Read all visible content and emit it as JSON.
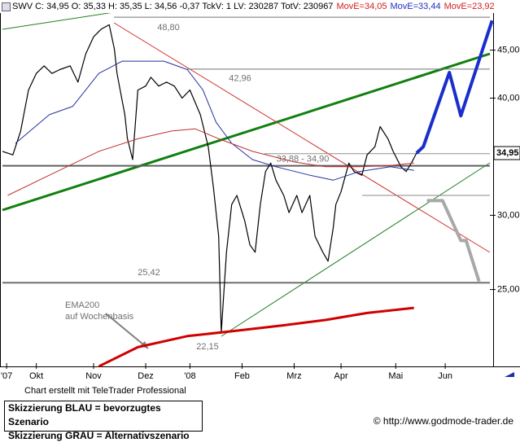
{
  "header": {
    "quote": "SWV C: 34,95 O: 35,33 H: 35,35 L: 34,56 -0,37 TckV: 1 LV: 230287 TotV: 230967",
    "ema_labels": [
      {
        "text": "MovE=34,05",
        "color": "#d02020"
      },
      {
        "text": "MovE=33,44",
        "color": "#2030c0"
      },
      {
        "text": "MovE=23,92",
        "color": "#d02020"
      }
    ]
  },
  "chart_data": {
    "type": "line",
    "log_scale": true,
    "grid": false,
    "xlim": [
      0,
      188.4
    ],
    "ylim": [
      20.7,
      49.1
    ],
    "xticks": [
      {
        "value": 1.6,
        "label": "'07"
      },
      {
        "value": 13,
        "label": "Okt"
      },
      {
        "value": 35,
        "label": "Nov"
      },
      {
        "value": 55,
        "label": "Dez"
      },
      {
        "value": 72,
        "label": "'08"
      },
      {
        "value": 92,
        "label": "Feb"
      },
      {
        "value": 112,
        "label": "Mrz"
      },
      {
        "value": 130,
        "label": "Apr"
      },
      {
        "value": 151,
        "label": "Mai"
      },
      {
        "value": 170,
        "label": "Jun"
      }
    ],
    "yticks": [
      {
        "value": 25,
        "label": "25,00"
      },
      {
        "value": 30,
        "label": "30,00"
      },
      {
        "value": 40,
        "label": "40,00"
      },
      {
        "value": 45,
        "label": "45,00"
      }
    ],
    "series": [
      {
        "color": "#000000",
        "width": 1.2,
        "x": [
          0,
          4,
          7,
          10,
          13,
          16,
          19,
          22,
          26,
          29,
          32,
          35,
          38,
          41,
          43,
          44,
          47,
          48,
          50,
          52,
          55,
          57,
          60,
          63,
          66,
          69,
          72,
          76,
          79,
          81,
          83,
          84,
          86,
          88,
          90,
          93,
          95,
          97,
          99,
          101,
          103,
          105,
          108,
          110,
          113,
          115,
          118,
          120,
          123,
          125,
          127,
          128,
          130,
          133,
          135,
          138,
          140,
          143,
          145,
          148,
          150,
          153,
          155,
          157,
          159
        ],
        "values": [
          35.1,
          34.8,
          36.9,
          40.8,
          42.5,
          43.3,
          42.5,
          42.9,
          43.3,
          41.6,
          44.6,
          46.5,
          47.4,
          47.9,
          45.1,
          42.5,
          38.4,
          36.2,
          34.4,
          40.8,
          41.2,
          42.1,
          41.2,
          41.6,
          41.2,
          40.0,
          40.8,
          38.4,
          35.5,
          32.1,
          28.5,
          22.5,
          27.4,
          30.8,
          31.5,
          29.6,
          27.9,
          27.4,
          30.8,
          33.4,
          34.1,
          32.7,
          31.5,
          30.2,
          31.5,
          30.2,
          31.5,
          28.5,
          27.4,
          26.8,
          29.1,
          30.8,
          31.8,
          34.1,
          33.4,
          33.1,
          34.8,
          35.5,
          37.3,
          36.2,
          35.1,
          33.8,
          33.4,
          34.1,
          34.95
        ]
      },
      {
        "color": "#2030a0",
        "width": 1,
        "x": [
          5,
          18,
          27,
          37,
          46,
          62,
          71,
          77,
          82,
          88,
          96,
          105,
          118,
          127,
          137,
          149,
          158
        ],
        "values": [
          35.8,
          38.4,
          39.2,
          42.5,
          43.8,
          43.8,
          42.9,
          40.8,
          37.7,
          35.8,
          34.4,
          33.8,
          33.1,
          32.7,
          33.4,
          33.8,
          33.5
        ]
      },
      {
        "color": "#c03030",
        "width": 1,
        "x": [
          2,
          18,
          37,
          52,
          65,
          74,
          83,
          96,
          112,
          124,
          137,
          149,
          158
        ],
        "values": [
          31.5,
          33.1,
          35.1,
          36.2,
          36.9,
          37.1,
          36.2,
          35.1,
          34.2,
          33.8,
          33.8,
          33.9,
          34.1
        ]
      },
      {
        "color": "#d00000",
        "width": 3,
        "x": [
          37,
          52,
          71,
          90,
          108,
          124,
          140,
          158
        ],
        "values": [
          20.7,
          21.7,
          22.3,
          22.6,
          22.9,
          23.2,
          23.6,
          23.9
        ]
      },
      {
        "color": "#1a2ecc",
        "width": 4,
        "x": [
          159,
          161.6,
          171.6,
          176,
          188
        ],
        "values": [
          34.95,
          35.5,
          42.6,
          38.3,
          48.4
        ]
      },
      {
        "color": "#a8a8a8",
        "width": 4,
        "x": [
          163,
          169,
          176,
          178,
          183
        ],
        "values": [
          31.1,
          31.1,
          28.2,
          28.2,
          25.5
        ]
      }
    ],
    "levels": [
      {
        "value": 48.8,
        "label": "48,80"
      },
      {
        "value": 42.96,
        "label": "42,96"
      },
      {
        "values": [
          33.88,
          34.9
        ],
        "label": "33,88 - 34,90"
      },
      {
        "value": 25.42,
        "label": "25,42"
      },
      {
        "value": 22.15,
        "label": "22,15"
      }
    ],
    "annotation": [
      "EMA200",
      "auf Wochenbasis"
    ],
    "last_price": {
      "value": 34.95,
      "label": "34,95"
    }
  },
  "footer": {
    "credit": "Chart erstellt mit TeleTrader Professional",
    "legend": [
      "Skizzierung BLAU = bevorzugtes Szenario",
      "Skizzierung GRAU = Alternativszenario"
    ],
    "site": "http://www.godmode-trader.de"
  }
}
